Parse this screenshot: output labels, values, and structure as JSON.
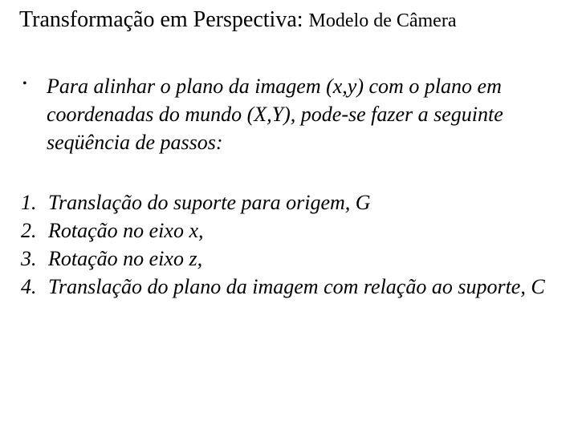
{
  "title": {
    "main": "Transformação em Perspectiva:",
    "sub": "Modelo de Câmera"
  },
  "bullet": {
    "text": " Para alinhar o plano da imagem (x,y) com o plano em coordenadas do mundo (X,Y), pode-se fazer a seguinte seqüência de passos:"
  },
  "steps": {
    "items": [
      "Translação do suporte para origem, G",
      "Rotação no eixo x,",
      "Rotação no eixo z,",
      "Translação do plano da imagem com relação ao suporte, C"
    ]
  },
  "style": {
    "background_color": "#ffffff",
    "text_color": "#000000",
    "title_fontsize": 28,
    "title_sub_fontsize": 24,
    "body_fontsize": 26,
    "font_family": "Times New Roman"
  }
}
